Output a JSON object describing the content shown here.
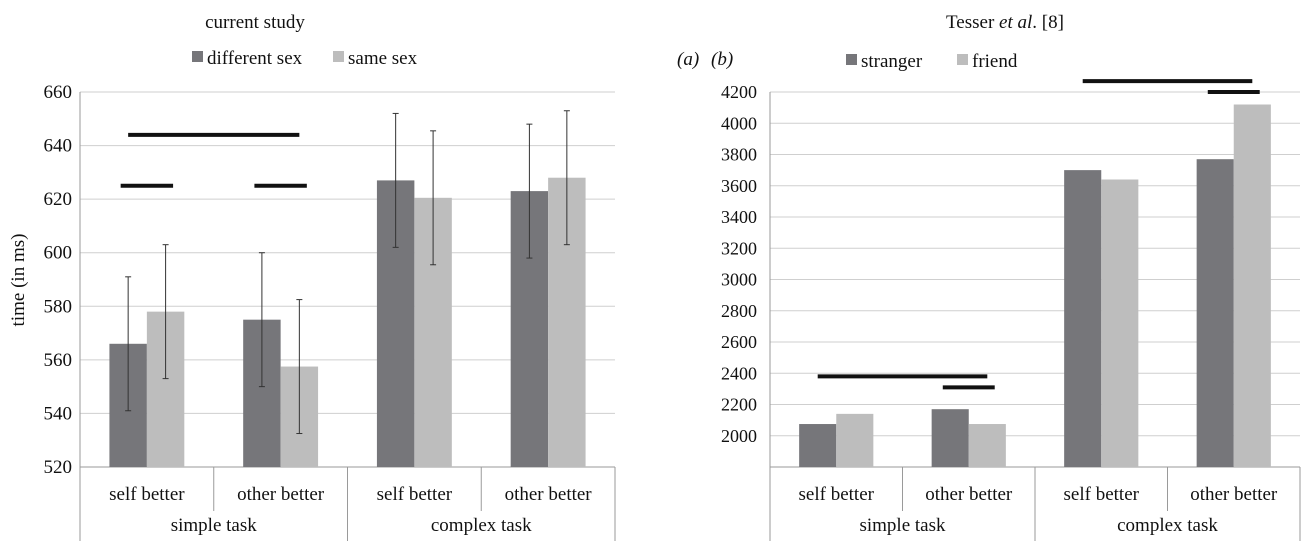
{
  "colors": {
    "dark_bar": "#76767a",
    "light_bar": "#bdbdbd",
    "grid": "#cfcfcf",
    "axis": "#9a9a9a",
    "sig": "#111111"
  },
  "panel_labels": {
    "a": "(a)",
    "b": "(b)"
  },
  "chart_data": [
    {
      "id": "a",
      "type": "bar",
      "title": "current study",
      "title_plain": "current study",
      "ylabel": "time (in ms)",
      "ylim": [
        520,
        660
      ],
      "yticks": [
        520,
        540,
        560,
        580,
        600,
        620,
        640,
        660
      ],
      "grid": true,
      "legend_position": "top",
      "categories": [
        "self better",
        "other better",
        "self better",
        "other better"
      ],
      "groups": [
        {
          "label": "simple task",
          "span": 2
        },
        {
          "label": "complex task",
          "span": 2
        }
      ],
      "series": [
        {
          "name": "different sex",
          "color": "dark_bar",
          "values": [
            566,
            575,
            627,
            623
          ],
          "error": [
            25,
            25,
            25,
            25
          ]
        },
        {
          "name": "same sex",
          "color": "light_bar",
          "values": [
            578,
            557.5,
            620.5,
            628
          ],
          "error": [
            25,
            25,
            25,
            25
          ]
        }
      ],
      "significance": [
        {
          "from_category": 0,
          "to_category": 1,
          "level": 644
        },
        {
          "category": 0,
          "level": 625
        },
        {
          "category": 1,
          "level": 625
        }
      ]
    },
    {
      "id": "b",
      "type": "bar",
      "title": "Tesser et al. [8]",
      "title_plain": "Tesser ",
      "title_italic": "et al",
      "title_rest": ". [8]",
      "ylabel": "",
      "ylim": [
        1800,
        4200
      ],
      "yticks": [
        2000,
        2200,
        2400,
        2600,
        2800,
        3000,
        3200,
        3400,
        3600,
        3800,
        4000,
        4200
      ],
      "grid": true,
      "legend_position": "top",
      "categories": [
        "self better",
        "other better",
        "self better",
        "other better"
      ],
      "groups": [
        {
          "label": "simple task",
          "span": 2
        },
        {
          "label": "complex task",
          "span": 2
        }
      ],
      "series": [
        {
          "name": "stranger",
          "color": "dark_bar",
          "values": [
            2075,
            2170,
            3700,
            3770
          ]
        },
        {
          "name": "friend",
          "color": "light_bar",
          "values": [
            2140,
            2075,
            3640,
            4120
          ]
        }
      ],
      "significance": [
        {
          "from_category": 0,
          "to_category": 1,
          "level": 2380
        },
        {
          "category": 1,
          "level": 2310
        },
        {
          "from_category": 2,
          "to_category": 3,
          "level": 4270
        },
        {
          "category": 3,
          "level": 4200
        }
      ]
    }
  ]
}
